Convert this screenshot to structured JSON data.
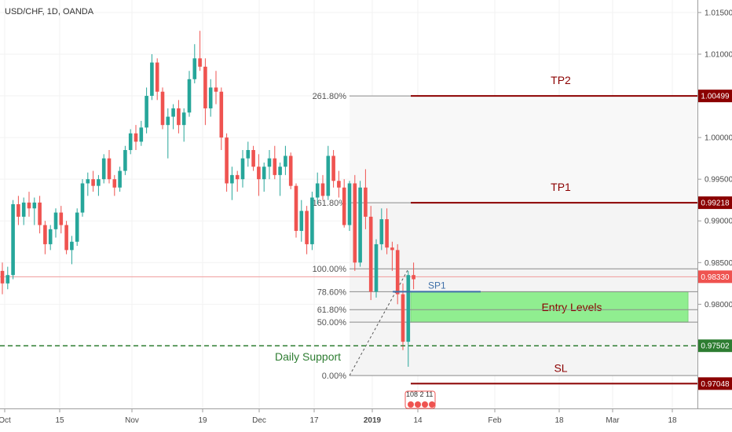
{
  "chart_data": {
    "type": "candlestick",
    "title": "USD/CHF, 1D, OANDA",
    "x_tick_labels": [
      "Oct",
      "15",
      "Nov",
      "19",
      "Dec",
      "17",
      "2019",
      "14",
      "Feb",
      "18",
      "Mar",
      "18"
    ],
    "y_tick_labels": [
      "1.01500",
      "1.01000",
      "1.00500",
      "1.00000",
      "0.99500",
      "0.99000",
      "0.98500",
      "0.98000",
      "0.97500"
    ],
    "ylim": [
      0.9675,
      1.0165
    ],
    "colors": {
      "up": "#26a69a",
      "down": "#ef5350"
    },
    "candles": [
      [
        0.984,
        0.985,
        0.9812,
        0.9825
      ],
      [
        0.9825,
        0.9845,
        0.9818,
        0.9835
      ],
      [
        0.9835,
        0.9925,
        0.983,
        0.992
      ],
      [
        0.992,
        0.993,
        0.9895,
        0.9905
      ],
      [
        0.9905,
        0.9928,
        0.9895,
        0.9922
      ],
      [
        0.9922,
        0.9935,
        0.9905,
        0.9915
      ],
      [
        0.9915,
        0.9928,
        0.9895,
        0.9922
      ],
      [
        0.9922,
        0.993,
        0.9885,
        0.9895
      ],
      [
        0.9895,
        0.99,
        0.986,
        0.9872
      ],
      [
        0.9872,
        0.9895,
        0.9865,
        0.989
      ],
      [
        0.989,
        0.9915,
        0.988,
        0.991
      ],
      [
        0.991,
        0.9918,
        0.9885,
        0.9895
      ],
      [
        0.9895,
        0.99,
        0.986,
        0.9865
      ],
      [
        0.9865,
        0.9882,
        0.9848,
        0.9875
      ],
      [
        0.9875,
        0.9915,
        0.987,
        0.991
      ],
      [
        0.991,
        0.995,
        0.9905,
        0.9945
      ],
      [
        0.9945,
        0.9958,
        0.993,
        0.995
      ],
      [
        0.995,
        0.996,
        0.9935,
        0.9942
      ],
      [
        0.9942,
        0.9955,
        0.993,
        0.995
      ],
      [
        0.995,
        0.998,
        0.9945,
        0.9975
      ],
      [
        0.9975,
        0.9985,
        0.9945,
        0.995
      ],
      [
        0.995,
        0.9955,
        0.993,
        0.994
      ],
      [
        0.994,
        0.9965,
        0.9935,
        0.996
      ],
      [
        0.996,
        0.999,
        0.9955,
        0.9985
      ],
      [
        0.9985,
        1.001,
        0.998,
        1.0005
      ],
      [
        1.0005,
        1.0015,
        0.9985,
        0.9995
      ],
      [
        0.9995,
        1.002,
        0.999,
        1.0012
      ],
      [
        1.0012,
        1.006,
        1.0005,
        1.005
      ],
      [
        1.005,
        1.01,
        1.0045,
        1.009
      ],
      [
        1.009,
        1.0095,
        1.0045,
        1.0055
      ],
      [
        1.0055,
        1.006,
        1.001,
        1.0015
      ],
      [
        1.0015,
        1.0035,
        0.9975,
        1.0025
      ],
      [
        1.0025,
        1.004,
        1.001,
        1.0035
      ],
      [
        1.0035,
        1.0045,
        1.0005,
        1.0015
      ],
      [
        1.0015,
        1.0035,
        0.9995,
        1.003
      ],
      [
        1.003,
        1.008,
        1.0025,
        1.007
      ],
      [
        1.007,
        1.0112,
        1.0065,
        1.0095
      ],
      [
        1.0095,
        1.0128,
        1.008,
        1.0085
      ],
      [
        1.0085,
        1.0095,
        1.0015,
        1.0035
      ],
      [
        1.0035,
        1.007,
        1.0025,
        1.006
      ],
      [
        1.006,
        1.008,
        1.004,
        1.0055
      ],
      [
        1.0055,
        1.006,
        0.9985,
        1.0
      ],
      [
        1.0,
        1.0005,
        0.9935,
        0.9945
      ],
      [
        0.9945,
        0.9965,
        0.9925,
        0.9955
      ],
      [
        0.9955,
        0.996,
        0.9935,
        0.995
      ],
      [
        0.995,
        0.9985,
        0.994,
        0.9975
      ],
      [
        0.9975,
        0.9995,
        0.9965,
        0.9985
      ],
      [
        0.9985,
        0.999,
        0.996,
        0.9965
      ],
      [
        0.9965,
        0.998,
        0.993,
        0.995
      ],
      [
        0.995,
        0.997,
        0.9935,
        0.9965
      ],
      [
        0.9965,
        0.9985,
        0.995,
        0.9975
      ],
      [
        0.9975,
        0.999,
        0.995,
        0.9955
      ],
      [
        0.9955,
        0.997,
        0.993,
        0.9965
      ],
      [
        0.9965,
        0.999,
        0.9955,
        0.9978
      ],
      [
        0.9978,
        0.9982,
        0.9938,
        0.9942
      ],
      [
        0.9942,
        0.9945,
        0.988,
        0.9888
      ],
      [
        0.9888,
        0.9925,
        0.9875,
        0.9912
      ],
      [
        0.9912,
        0.9918,
        0.986,
        0.9872
      ],
      [
        0.9872,
        0.9935,
        0.9865,
        0.9928
      ],
      [
        0.9928,
        0.9958,
        0.992,
        0.9945
      ],
      [
        0.9945,
        0.9955,
        0.9925,
        0.993
      ],
      [
        0.993,
        0.999,
        0.9925,
        0.9978
      ],
      [
        0.9978,
        0.9985,
        0.994,
        0.9948
      ],
      [
        0.9948,
        0.996,
        0.9928,
        0.994
      ],
      [
        0.994,
        0.995,
        0.9892,
        0.9895
      ],
      [
        0.9895,
        0.9948,
        0.9888,
        0.9945
      ],
      [
        0.9945,
        0.9955,
        0.984,
        0.985
      ],
      [
        0.985,
        0.9948,
        0.9845,
        0.994
      ],
      [
        0.994,
        0.9962,
        0.989,
        0.9905
      ],
      [
        0.9905,
        0.9918,
        0.9805,
        0.9815
      ],
      [
        0.9815,
        0.9878,
        0.9808,
        0.9872
      ],
      [
        0.9872,
        0.9915,
        0.9865,
        0.9902
      ],
      [
        0.9902,
        0.9915,
        0.986,
        0.9868
      ],
      [
        0.9868,
        0.9875,
        0.984,
        0.9865
      ],
      [
        0.9865,
        0.9872,
        0.98,
        0.9812
      ],
      [
        0.9812,
        0.9825,
        0.9745,
        0.9755
      ],
      [
        0.9755,
        0.984,
        0.9725,
        0.9835
      ],
      [
        0.9835,
        0.985,
        0.9818,
        0.983
      ]
    ],
    "levels": [
      {
        "label": "TP2",
        "price_label": "1.00499",
        "value": 1.00499,
        "color": "#8b0000"
      },
      {
        "label": "TP1",
        "price_label": "0.99218",
        "value": 0.99218,
        "color": "#8b0000"
      },
      {
        "label": "SL",
        "price_label": "0.97048",
        "value": 0.97048,
        "color": "#8b0000"
      }
    ],
    "current_price_label": "0.98330",
    "current_price": 0.9833,
    "support": {
      "label": "Daily Support",
      "price_label": "0.97502",
      "value": 0.97502,
      "color": "#2e7d32"
    },
    "fib_labels": [
      {
        "label": "261.80%",
        "value": 1.00499
      },
      {
        "label": "161.80%",
        "value": 0.99218
      },
      {
        "label": "100.00%",
        "value": 0.98425
      },
      {
        "label": "78.60%",
        "value": 0.9815
      },
      {
        "label": "61.80%",
        "value": 0.97935
      },
      {
        "label": "50.00%",
        "value": 0.97785
      },
      {
        "label": "0.00%",
        "value": 0.97145
      }
    ],
    "entry_zone": {
      "label": "Entry Levels",
      "top": 0.9815,
      "bottom": 0.97785,
      "color": "#90ee90"
    },
    "sp1": {
      "label": "SP1",
      "value": 0.9815
    },
    "event_label": "108 2 11"
  }
}
